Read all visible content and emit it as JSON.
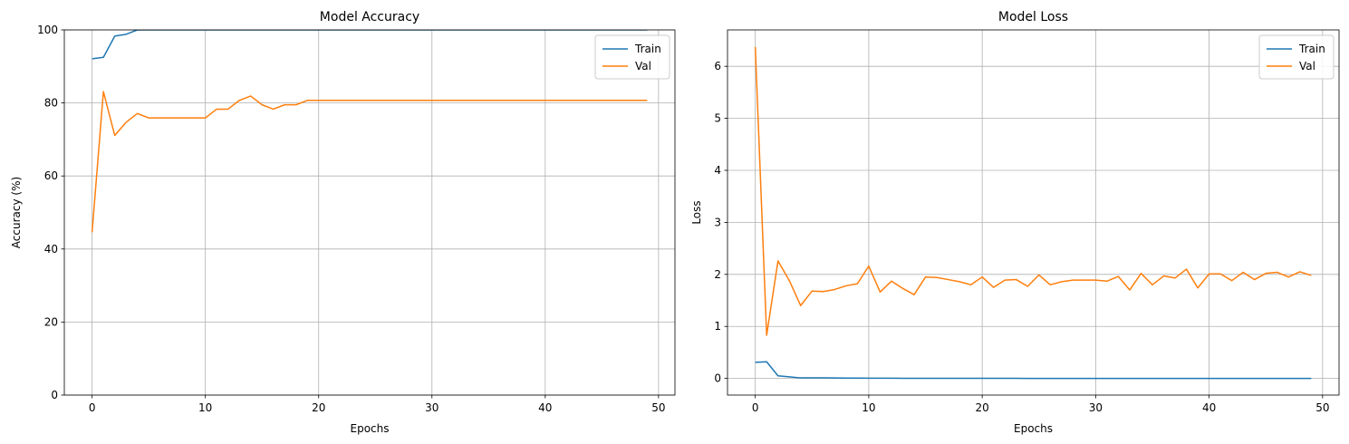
{
  "chart_data": [
    {
      "type": "line",
      "title": "Model Accuracy",
      "xlabel": "Epochs",
      "ylabel": "Accuracy (%)",
      "xlim": [
        -2.45,
        51.45
      ],
      "ylim": [
        0,
        100
      ],
      "xticks": [
        0,
        10,
        20,
        30,
        40,
        50
      ],
      "yticks": [
        0,
        20,
        40,
        60,
        80,
        100
      ],
      "grid": true,
      "legend": "top-right",
      "series": [
        {
          "name": "Train",
          "color": "#1f77b4",
          "x": [
            0,
            1,
            2,
            3,
            4,
            5,
            6,
            7,
            8,
            9,
            10,
            11,
            12,
            13,
            14,
            15,
            16,
            17,
            18,
            19,
            20,
            21,
            22,
            23,
            24,
            25,
            26,
            27,
            28,
            29,
            30,
            31,
            32,
            33,
            34,
            35,
            36,
            37,
            38,
            39,
            40,
            41,
            42,
            43,
            44,
            45,
            46,
            47,
            48,
            49
          ],
          "values": [
            92.1,
            92.5,
            98.3,
            98.8,
            100,
            100,
            100,
            100,
            100,
            100,
            100,
            100,
            100,
            100,
            100,
            100,
            100,
            100,
            100,
            100,
            100,
            100,
            100,
            100,
            100,
            100,
            100,
            100,
            100,
            100,
            100,
            100,
            100,
            100,
            100,
            100,
            100,
            100,
            100,
            100,
            100,
            100,
            100,
            100,
            100,
            100,
            100,
            100,
            100,
            100
          ]
        },
        {
          "name": "Val",
          "color": "#ff7f0e",
          "x": [
            0,
            1,
            2,
            3,
            4,
            5,
            6,
            7,
            8,
            9,
            10,
            11,
            12,
            13,
            14,
            15,
            16,
            17,
            18,
            19,
            20,
            21,
            22,
            23,
            24,
            25,
            26,
            27,
            28,
            29,
            30,
            31,
            32,
            33,
            34,
            35,
            36,
            37,
            38,
            39,
            40,
            41,
            42,
            43,
            44,
            45,
            46,
            47,
            48,
            49
          ],
          "values": [
            44.6,
            83.1,
            71.1,
            74.7,
            77.1,
            75.9,
            75.9,
            75.9,
            75.9,
            75.9,
            75.9,
            78.3,
            78.3,
            80.7,
            81.9,
            79.5,
            78.3,
            79.5,
            79.5,
            80.7,
            80.7,
            80.7,
            80.7,
            80.7,
            80.7,
            80.7,
            80.7,
            80.7,
            80.7,
            80.7,
            80.7,
            80.7,
            80.7,
            80.7,
            80.7,
            80.7,
            80.7,
            80.7,
            80.7,
            80.7,
            80.7,
            80.7,
            80.7,
            80.7,
            80.7,
            80.7,
            80.7,
            80.7,
            80.7,
            80.7
          ]
        }
      ]
    },
    {
      "type": "line",
      "title": "Model Loss",
      "xlabel": "Epochs",
      "ylabel": "Loss",
      "xlim": [
        -2.45,
        51.45
      ],
      "ylim": [
        -0.32,
        6.7
      ],
      "xticks": [
        0,
        10,
        20,
        30,
        40,
        50
      ],
      "yticks": [
        0,
        1,
        2,
        3,
        4,
        5,
        6
      ],
      "grid": true,
      "legend": "top-right",
      "series": [
        {
          "name": "Train",
          "color": "#1f77b4",
          "x": [
            0,
            1,
            2,
            3,
            4,
            5,
            6,
            7,
            8,
            9,
            10,
            11,
            12,
            13,
            14,
            15,
            16,
            17,
            18,
            19,
            20,
            21,
            22,
            23,
            24,
            25,
            26,
            27,
            28,
            29,
            30,
            31,
            32,
            33,
            34,
            35,
            36,
            37,
            38,
            39,
            40,
            41,
            42,
            43,
            44,
            45,
            46,
            47,
            48,
            49
          ],
          "values": [
            0.31,
            0.32,
            0.05,
            0.03,
            0.01,
            0.01,
            0.01,
            0.008,
            0.007,
            0.006,
            0.005,
            0.004,
            0.004,
            0.003,
            0.003,
            0.003,
            0.002,
            0.002,
            0.002,
            0.002,
            0.002,
            0.002,
            0.002,
            0.002,
            0.001,
            0.001,
            0.001,
            0.001,
            0.001,
            0.001,
            0.001,
            0.001,
            0.001,
            0.001,
            0.001,
            0.001,
            0.001,
            0.001,
            0.001,
            0.001,
            0.001,
            0.001,
            0.001,
            0.001,
            0.001,
            0.001,
            0.001,
            0.001,
            0.001,
            0.001
          ]
        },
        {
          "name": "Val",
          "color": "#ff7f0e",
          "x": [
            0,
            1,
            2,
            3,
            4,
            5,
            6,
            7,
            8,
            9,
            10,
            11,
            12,
            13,
            14,
            15,
            16,
            17,
            18,
            19,
            20,
            21,
            22,
            23,
            24,
            25,
            26,
            27,
            28,
            29,
            30,
            31,
            32,
            33,
            34,
            35,
            36,
            37,
            38,
            39,
            40,
            41,
            42,
            43,
            44,
            45,
            46,
            47,
            48,
            49
          ],
          "values": [
            6.37,
            0.83,
            2.26,
            1.88,
            1.4,
            1.68,
            1.67,
            1.71,
            1.78,
            1.82,
            2.16,
            1.66,
            1.87,
            1.73,
            1.61,
            1.95,
            1.94,
            1.9,
            1.86,
            1.8,
            1.95,
            1.75,
            1.89,
            1.9,
            1.77,
            1.99,
            1.8,
            1.86,
            1.89,
            1.89,
            1.89,
            1.87,
            1.96,
            1.7,
            2.02,
            1.8,
            1.97,
            1.93,
            2.1,
            1.74,
            2.01,
            2.01,
            1.88,
            2.04,
            1.9,
            2.02,
            2.04,
            1.95,
            2.05,
            1.98
          ]
        }
      ]
    }
  ]
}
